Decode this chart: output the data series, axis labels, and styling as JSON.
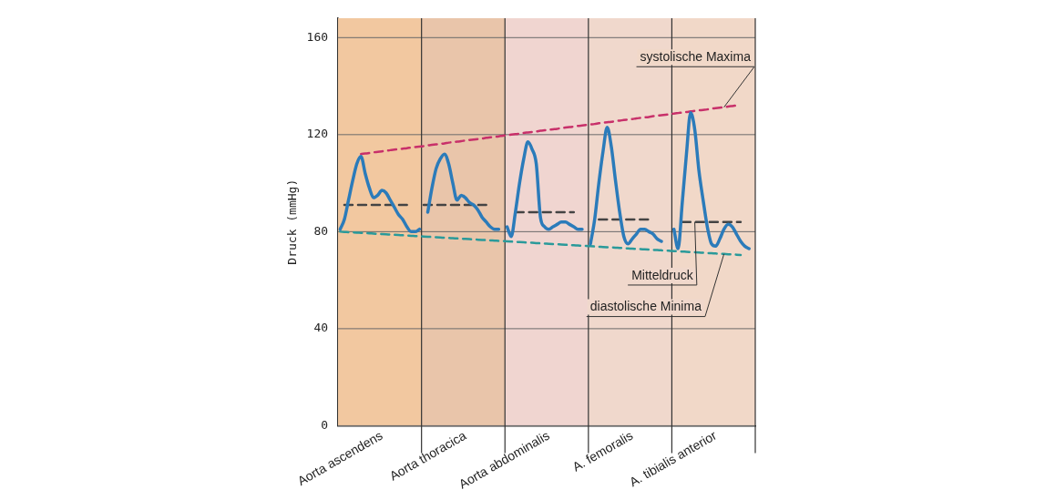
{
  "chart_data": {
    "type": "line",
    "ylabel": "Druck (mmHg)",
    "ylim": [
      0,
      168
    ],
    "categories": [
      null,
      null,
      null,
      null,
      null,
      null,
      null,
      null,
      null,
      null,
      "Aorta ascendens",
      null,
      null,
      null,
      null,
      null,
      null,
      null,
      null,
      null,
      null,
      null,
      null,
      null,
      null,
      null,
      null,
      null,
      null,
      null,
      "Aorta thoracica",
      null,
      null,
      null,
      null,
      null,
      null,
      null,
      null,
      null,
      null,
      null,
      null,
      null,
      null,
      null,
      null,
      null,
      null,
      null,
      "Aorta abdominalis",
      null,
      null,
      null,
      null,
      null,
      null,
      null,
      null,
      null,
      null,
      null,
      null,
      null,
      null,
      null,
      null,
      null,
      null,
      null,
      "A. femoralis",
      null,
      null,
      null,
      null,
      null,
      null,
      null,
      null,
      null,
      null,
      null,
      null,
      null,
      null,
      null,
      null,
      null,
      null,
      null,
      "A. tibialis anterior",
      null,
      null,
      null,
      null,
      null,
      null,
      null,
      null,
      null
    ],
    "yticks": [
      0,
      40,
      80,
      120,
      160
    ],
    "grid": "y",
    "legend": false,
    "marker": "none",
    "series": [
      {
        "color": "#2b7bba",
        "line_style": "solid",
        "values": [
          81,
          85,
          93,
          101,
          108,
          111,
          104,
          98,
          94,
          95,
          97,
          96,
          93,
          90,
          87,
          85,
          82,
          80,
          80,
          81,
          null,
          88,
          98,
          106,
          110,
          112,
          108,
          100,
          93,
          95,
          94,
          92,
          91,
          89,
          86,
          84,
          82,
          81,
          81,
          null,
          82,
          78,
          88,
          100,
          110,
          117,
          114,
          108,
          86,
          82,
          81,
          82,
          83,
          84,
          84,
          83,
          82,
          81,
          81,
          null,
          75,
          85,
          100,
          113,
          123,
          115,
          101,
          88,
          78,
          75,
          77,
          79,
          81,
          81,
          80,
          79,
          77,
          76,
          null,
          null,
          81,
          73,
          92,
          112,
          129,
          122,
          105,
          93,
          82,
          75,
          74,
          77,
          81,
          83,
          82,
          79,
          76,
          74,
          73,
          null
        ]
      },
      {
        "name": "systolische Maxima",
        "color": "#c8306a",
        "line_style": "dashed",
        "values": [
          null,
          null,
          null,
          null,
          null,
          112,
          112.2,
          112.4,
          112.7,
          112.9,
          113.1,
          113.3,
          113.6,
          113.8,
          114,
          114.2,
          114.4,
          114.7,
          114.9,
          115.1,
          115.3,
          115.6,
          115.8,
          116,
          116.2,
          116.4,
          116.7,
          116.9,
          117.1,
          117.3,
          117.6,
          117.8,
          118,
          118.2,
          118.4,
          118.7,
          118.9,
          119.1,
          119.3,
          119.6,
          119.8,
          120,
          120.2,
          120.4,
          120.7,
          120.9,
          121.1,
          121.3,
          121.6,
          121.8,
          122,
          122.2,
          122.4,
          122.7,
          122.9,
          123.1,
          123.3,
          123.6,
          123.8,
          124,
          124.2,
          124.4,
          124.7,
          124.9,
          125.1,
          125.3,
          125.6,
          125.8,
          126,
          126.2,
          126.4,
          126.7,
          126.9,
          127.1,
          127.3,
          127.6,
          127.8,
          128,
          128.2,
          128.4,
          128.7,
          128.9,
          129.1,
          129.3,
          129.6,
          129.8,
          130,
          130.2,
          130.4,
          130.7,
          130.9,
          131.1,
          131.3,
          131.6,
          131.8,
          132,
          null,
          null,
          null,
          null
        ]
      },
      {
        "name": "Mitteldruck",
        "color": "#444444",
        "line_style": "dashed",
        "values": [
          null,
          91,
          91,
          91,
          91,
          91,
          91,
          91,
          91,
          91,
          91,
          91,
          91,
          91,
          91,
          91,
          91,
          null,
          null,
          null,
          91,
          91,
          91,
          91,
          91,
          91,
          91,
          91,
          91,
          91,
          91,
          91,
          91,
          91,
          91,
          91,
          null,
          null,
          null,
          null,
          null,
          null,
          88,
          88,
          88,
          88,
          88,
          88,
          88,
          88,
          88,
          88,
          88,
          88,
          88,
          88,
          88,
          null,
          null,
          null,
          null,
          null,
          85,
          85,
          85,
          85,
          85,
          85,
          85,
          85,
          85,
          85,
          85,
          85,
          85,
          85,
          null,
          null,
          null,
          null,
          null,
          null,
          84,
          84,
          84,
          84,
          84,
          84,
          84,
          84,
          84,
          84,
          84,
          84,
          84,
          84,
          84,
          null,
          null,
          null
        ]
      },
      {
        "name": "diastolische Minima",
        "color": "#2a9a9a",
        "line_style": "dashed",
        "values": [
          80,
          79.9,
          79.8,
          79.7,
          79.6,
          79.5,
          79.4,
          79.3,
          79.2,
          79.1,
          79,
          78.9,
          78.8,
          78.7,
          78.6,
          78.5,
          78.4,
          78.3,
          78.2,
          78.1,
          78,
          77.9,
          77.8,
          77.7,
          77.6,
          77.5,
          77.4,
          77.3,
          77.2,
          77.1,
          77,
          76.9,
          76.8,
          76.7,
          76.6,
          76.5,
          76.4,
          76.3,
          76.2,
          76.1,
          76,
          75.9,
          75.8,
          75.7,
          75.6,
          75.5,
          75.4,
          75.3,
          75.2,
          75.1,
          75,
          74.9,
          74.8,
          74.7,
          74.6,
          74.5,
          74.4,
          74.3,
          74.2,
          74.1,
          74,
          73.9,
          73.8,
          73.7,
          73.6,
          73.5,
          73.4,
          73.3,
          73.2,
          73.1,
          73,
          72.9,
          72.8,
          72.7,
          72.6,
          72.5,
          72.4,
          72.3,
          72.2,
          72.1,
          72,
          71.9,
          71.8,
          71.7,
          71.6,
          71.5,
          71.4,
          71.3,
          71.2,
          71.1,
          71,
          70.9,
          70.8,
          70.7,
          70.6,
          70.5,
          70.4,
          null,
          null,
          null
        ]
      }
    ]
  }
}
